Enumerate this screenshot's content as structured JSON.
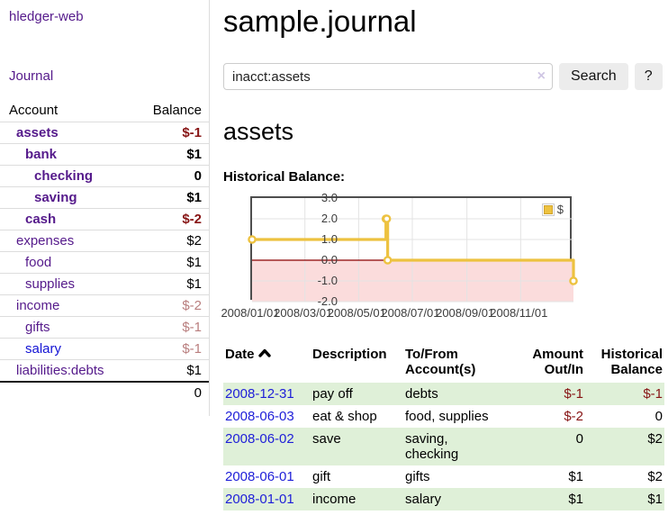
{
  "app": {
    "brand": "hledger-web"
  },
  "colors": {
    "link_purple": "#551a8b",
    "link_blue": "#1414d4",
    "negative_red": "#871414",
    "dim_negative": "#b97e7e",
    "row_green": "#dff0d8",
    "chart_series_yellow": "#edc240",
    "chart_negative_fill": "#fbdcdc",
    "chart_zero_line": "#8b0000"
  },
  "sidebar": {
    "journal_link": "Journal",
    "accounts": {
      "col_account": "Account",
      "col_balance": "Balance",
      "rows": [
        {
          "account": "assets",
          "balance": "$-1",
          "indent": 1,
          "bold": true,
          "balance_style": "neg",
          "link_style": "purple"
        },
        {
          "account": "bank",
          "balance": "$1",
          "indent": 2,
          "bold": true,
          "balance_style": "pos",
          "link_style": "purple"
        },
        {
          "account": "checking",
          "balance": "0",
          "indent": 3,
          "bold": true,
          "balance_style": "pos",
          "link_style": "purple"
        },
        {
          "account": "saving",
          "balance": "$1",
          "indent": 3,
          "bold": true,
          "balance_style": "pos",
          "link_style": "purple"
        },
        {
          "account": "cash",
          "balance": "$-2",
          "indent": 2,
          "bold": true,
          "balance_style": "neg",
          "link_style": "purple"
        },
        {
          "account": "expenses",
          "balance": "$2",
          "indent": 1,
          "bold": false,
          "balance_style": "pos",
          "link_style": "purple"
        },
        {
          "account": "food",
          "balance": "$1",
          "indent": 2,
          "bold": false,
          "balance_style": "pos",
          "link_style": "purple"
        },
        {
          "account": "supplies",
          "balance": "$1",
          "indent": 2,
          "bold": false,
          "balance_style": "pos",
          "link_style": "purple"
        },
        {
          "account": "income",
          "balance": "$-2",
          "indent": 1,
          "bold": false,
          "balance_style": "dim",
          "link_style": "purple"
        },
        {
          "account": "gifts",
          "balance": "$-1",
          "indent": 2,
          "bold": false,
          "balance_style": "dim",
          "link_style": "purple"
        },
        {
          "account": "salary",
          "balance": "$-1",
          "indent": 2,
          "bold": false,
          "balance_style": "dim",
          "link_style": "blue"
        },
        {
          "account": "liabilities:debts",
          "balance": "$1",
          "indent": 1,
          "bold": false,
          "balance_style": "pos",
          "link_style": "purple"
        }
      ],
      "total": "0"
    }
  },
  "main": {
    "title": "sample.journal",
    "search": {
      "value": "inacct:assets",
      "clear_icon": "×",
      "search_button": "Search",
      "help_button": "?"
    },
    "account_title": "assets",
    "chart_heading": "Historical Balance:"
  },
  "chart_data": {
    "type": "line",
    "step": true,
    "legend": {
      "label": "$",
      "position": "top-right"
    },
    "ylim": [
      -2,
      3
    ],
    "xlim_days": [
      0,
      365
    ],
    "y_ticks": [
      "3.0",
      "2.0",
      "1.0",
      "0.0",
      "-1.0",
      "-2.0"
    ],
    "y_tick_values": [
      3,
      2,
      1,
      0,
      -1,
      -2
    ],
    "x_ticks": [
      {
        "label": "2008/01/01",
        "day": 0
      },
      {
        "label": "2008/03/01",
        "day": 60
      },
      {
        "label": "2008/05/01",
        "day": 121
      },
      {
        "label": "2008/07/01",
        "day": 182
      },
      {
        "label": "2008/09/01",
        "day": 244
      },
      {
        "label": "2008/11/01",
        "day": 305
      }
    ],
    "series": [
      {
        "name": "$",
        "color": "#edc240",
        "marker_fill": "#ffffff",
        "points": [
          {
            "date": "2008-01-01",
            "day": 0,
            "value": 1
          },
          {
            "date": "2008-06-01",
            "day": 152,
            "value": 2
          },
          {
            "date": "2008-06-02",
            "day": 153,
            "value": 2
          },
          {
            "date": "2008-06-03",
            "day": 154,
            "value": 0
          },
          {
            "date": "2008-12-31",
            "day": 365,
            "value": -1
          }
        ]
      }
    ],
    "grid": true,
    "negative_region_fill": "#fbdcdc",
    "zero_line_color": "#8b0000"
  },
  "register": {
    "columns": [
      {
        "label": "Date",
        "align": "left",
        "sorted": "asc"
      },
      {
        "label": "Description",
        "align": "left"
      },
      {
        "label": "To/From Account(s)",
        "align": "left"
      },
      {
        "label": "Amount Out/In",
        "align": "right"
      },
      {
        "label": "Historical Balance",
        "align": "right"
      }
    ],
    "rows": [
      {
        "date": "2008-12-31",
        "description": "pay off",
        "accounts": "debts",
        "amount": "$-1",
        "amount_style": "neg",
        "balance": "$-1",
        "balance_style": "neg"
      },
      {
        "date": "2008-06-03",
        "description": "eat & shop",
        "accounts": "food, supplies",
        "amount": "$-2",
        "amount_style": "neg",
        "balance": "0",
        "balance_style": "pos"
      },
      {
        "date": "2008-06-02",
        "description": "save",
        "accounts": "saving,\nchecking",
        "amount": "0",
        "amount_style": "pos",
        "balance": "$2",
        "balance_style": "pos"
      },
      {
        "date": "2008-06-01",
        "description": "gift",
        "accounts": "gifts",
        "amount": "$1",
        "amount_style": "pos",
        "balance": "$2",
        "balance_style": "pos"
      },
      {
        "date": "2008-01-01",
        "description": "income",
        "accounts": "salary",
        "amount": "$1",
        "amount_style": "pos",
        "balance": "$1",
        "balance_style": "pos"
      }
    ]
  }
}
